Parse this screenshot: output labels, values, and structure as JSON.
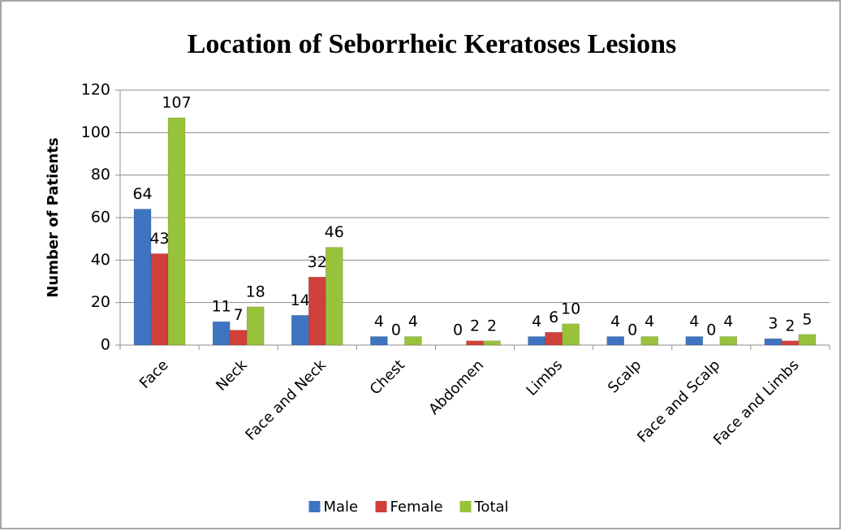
{
  "chart_data": {
    "type": "bar",
    "title": "Location of Seborrheic Keratoses Lesions",
    "y_label": "Number of Patients",
    "categories": [
      "Face",
      "Neck",
      "Face and Neck",
      "Chest",
      "Abdomen",
      "Limbs",
      "Scalp",
      "Face and Scalp",
      "Face and Limbs"
    ],
    "series": [
      {
        "name": "Male",
        "color": "#3f74c0",
        "values": [
          64,
          11,
          14,
          4,
          0,
          4,
          4,
          4,
          3
        ]
      },
      {
        "name": "Female",
        "color": "#d0403b",
        "values": [
          43,
          7,
          32,
          0,
          2,
          6,
          0,
          0,
          2
        ]
      },
      {
        "name": "Total",
        "color": "#98c23a",
        "values": [
          107,
          18,
          46,
          4,
          2,
          10,
          4,
          4,
          5
        ]
      }
    ],
    "ylim": [
      0,
      120
    ],
    "yticks": [
      0,
      20,
      40,
      60,
      80,
      100,
      120
    ],
    "grid": true,
    "legend": "bottom"
  }
}
